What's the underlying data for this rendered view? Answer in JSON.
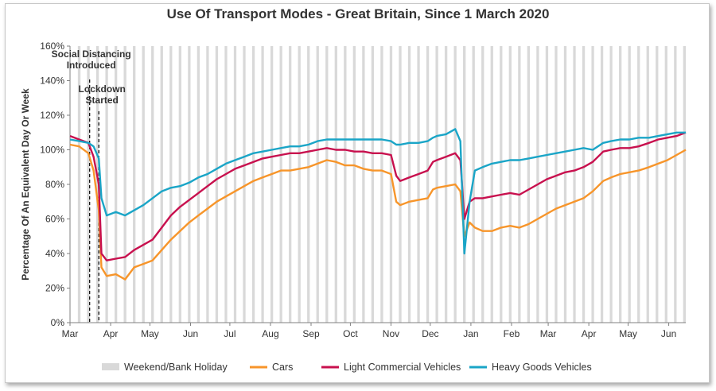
{
  "chart_data": {
    "type": "line",
    "title": "Use Of Transport Modes - Great Britain, Since 1 March 2020",
    "ylabel": "Percentage Of An Equivalent Day Or Week",
    "xlabel": "",
    "ylim": [
      0,
      160
    ],
    "y_ticks": [
      "0%",
      "20%",
      "40%",
      "60%",
      "80%",
      "100%",
      "120%",
      "140%",
      "160%"
    ],
    "x_tick_labels": [
      "Mar",
      "Apr",
      "May",
      "Jun",
      "Jul",
      "Aug",
      "Sep",
      "Oct",
      "Nov",
      "Dec",
      "Jan",
      "Feb",
      "Mar",
      "Apr",
      "May",
      "Jun"
    ],
    "x_start": "2020-03-01",
    "x_end": "2021-06-14",
    "grid": false,
    "legend_position": "bottom",
    "legend": {
      "shading": "Weekend/Bank Holiday",
      "shading_color": "#d9d9d9"
    },
    "annotations": [
      {
        "label_lines": [
          "Social Distancing",
          "Introduced"
        ],
        "date": "2020-03-16"
      },
      {
        "label_lines": [
          "Lockdown",
          "Started"
        ],
        "date": "2020-03-23"
      }
    ],
    "series": [
      {
        "name": "Cars",
        "color": "#f7952a",
        "points": [
          [
            "2020-03-01",
            103
          ],
          [
            "2020-03-08",
            102
          ],
          [
            "2020-03-15",
            98
          ],
          [
            "2020-03-19",
            88
          ],
          [
            "2020-03-23",
            65
          ],
          [
            "2020-03-25",
            32
          ],
          [
            "2020-03-29",
            27
          ],
          [
            "2020-04-05",
            28
          ],
          [
            "2020-04-12",
            25
          ],
          [
            "2020-04-19",
            32
          ],
          [
            "2020-04-26",
            34
          ],
          [
            "2020-05-03",
            36
          ],
          [
            "2020-05-10",
            42
          ],
          [
            "2020-05-17",
            48
          ],
          [
            "2020-05-24",
            53
          ],
          [
            "2020-05-31",
            58
          ],
          [
            "2020-06-07",
            62
          ],
          [
            "2020-06-14",
            66
          ],
          [
            "2020-06-21",
            70
          ],
          [
            "2020-06-28",
            73
          ],
          [
            "2020-07-05",
            76
          ],
          [
            "2020-07-12",
            79
          ],
          [
            "2020-07-19",
            82
          ],
          [
            "2020-07-26",
            84
          ],
          [
            "2020-08-02",
            86
          ],
          [
            "2020-08-09",
            88
          ],
          [
            "2020-08-16",
            88
          ],
          [
            "2020-08-23",
            89
          ],
          [
            "2020-08-30",
            90
          ],
          [
            "2020-09-06",
            92
          ],
          [
            "2020-09-13",
            94
          ],
          [
            "2020-09-20",
            93
          ],
          [
            "2020-09-27",
            91
          ],
          [
            "2020-10-04",
            91
          ],
          [
            "2020-10-11",
            89
          ],
          [
            "2020-10-18",
            88
          ],
          [
            "2020-10-25",
            88
          ],
          [
            "2020-11-01",
            86
          ],
          [
            "2020-11-05",
            70
          ],
          [
            "2020-11-08",
            68
          ],
          [
            "2020-11-15",
            70
          ],
          [
            "2020-11-22",
            71
          ],
          [
            "2020-11-29",
            72
          ],
          [
            "2020-12-03",
            77
          ],
          [
            "2020-12-06",
            78
          ],
          [
            "2020-12-13",
            79
          ],
          [
            "2020-12-20",
            80
          ],
          [
            "2020-12-24",
            76
          ],
          [
            "2020-12-27",
            50
          ],
          [
            "2020-12-31",
            58
          ],
          [
            "2021-01-04",
            55
          ],
          [
            "2021-01-10",
            53
          ],
          [
            "2021-01-17",
            53
          ],
          [
            "2021-01-24",
            55
          ],
          [
            "2021-01-31",
            56
          ],
          [
            "2021-02-07",
            55
          ],
          [
            "2021-02-14",
            57
          ],
          [
            "2021-02-21",
            60
          ],
          [
            "2021-02-28",
            63
          ],
          [
            "2021-03-07",
            66
          ],
          [
            "2021-03-14",
            68
          ],
          [
            "2021-03-21",
            70
          ],
          [
            "2021-03-28",
            72
          ],
          [
            "2021-04-04",
            76
          ],
          [
            "2021-04-12",
            82
          ],
          [
            "2021-04-18",
            84
          ],
          [
            "2021-04-25",
            86
          ],
          [
            "2021-05-02",
            87
          ],
          [
            "2021-05-09",
            88
          ],
          [
            "2021-05-17",
            90
          ],
          [
            "2021-05-24",
            92
          ],
          [
            "2021-05-31",
            94
          ],
          [
            "2021-06-07",
            97
          ],
          [
            "2021-06-14",
            100
          ]
        ]
      },
      {
        "name": "Light Commercial Vehicles",
        "color": "#c8104e",
        "points": [
          [
            "2020-03-01",
            108
          ],
          [
            "2020-03-08",
            106
          ],
          [
            "2020-03-15",
            104
          ],
          [
            "2020-03-19",
            96
          ],
          [
            "2020-03-23",
            80
          ],
          [
            "2020-03-25",
            40
          ],
          [
            "2020-03-29",
            36
          ],
          [
            "2020-04-05",
            37
          ],
          [
            "2020-04-12",
            38
          ],
          [
            "2020-04-19",
            42
          ],
          [
            "2020-04-26",
            45
          ],
          [
            "2020-05-03",
            48
          ],
          [
            "2020-05-10",
            55
          ],
          [
            "2020-05-17",
            62
          ],
          [
            "2020-05-24",
            67
          ],
          [
            "2020-05-31",
            71
          ],
          [
            "2020-06-07",
            75
          ],
          [
            "2020-06-14",
            79
          ],
          [
            "2020-06-21",
            83
          ],
          [
            "2020-06-28",
            86
          ],
          [
            "2020-07-05",
            89
          ],
          [
            "2020-07-12",
            91
          ],
          [
            "2020-07-19",
            93
          ],
          [
            "2020-07-26",
            95
          ],
          [
            "2020-08-02",
            96
          ],
          [
            "2020-08-09",
            97
          ],
          [
            "2020-08-16",
            98
          ],
          [
            "2020-08-23",
            98
          ],
          [
            "2020-08-30",
            99
          ],
          [
            "2020-09-06",
            100
          ],
          [
            "2020-09-13",
            101
          ],
          [
            "2020-09-20",
            100
          ],
          [
            "2020-09-27",
            100
          ],
          [
            "2020-10-04",
            99
          ],
          [
            "2020-10-11",
            99
          ],
          [
            "2020-10-18",
            98
          ],
          [
            "2020-10-25",
            98
          ],
          [
            "2020-11-01",
            97
          ],
          [
            "2020-11-05",
            85
          ],
          [
            "2020-11-08",
            82
          ],
          [
            "2020-11-15",
            84
          ],
          [
            "2020-11-22",
            86
          ],
          [
            "2020-11-29",
            88
          ],
          [
            "2020-12-03",
            93
          ],
          [
            "2020-12-06",
            94
          ],
          [
            "2020-12-13",
            96
          ],
          [
            "2020-12-20",
            98
          ],
          [
            "2020-12-24",
            94
          ],
          [
            "2020-12-27",
            60
          ],
          [
            "2020-12-31",
            70
          ],
          [
            "2021-01-04",
            72
          ],
          [
            "2021-01-10",
            72
          ],
          [
            "2021-01-17",
            73
          ],
          [
            "2021-01-24",
            74
          ],
          [
            "2021-01-31",
            75
          ],
          [
            "2021-02-07",
            74
          ],
          [
            "2021-02-14",
            77
          ],
          [
            "2021-02-21",
            80
          ],
          [
            "2021-02-28",
            83
          ],
          [
            "2021-03-07",
            85
          ],
          [
            "2021-03-14",
            87
          ],
          [
            "2021-03-21",
            88
          ],
          [
            "2021-03-28",
            90
          ],
          [
            "2021-04-04",
            93
          ],
          [
            "2021-04-12",
            99
          ],
          [
            "2021-04-18",
            100
          ],
          [
            "2021-04-25",
            101
          ],
          [
            "2021-05-02",
            101
          ],
          [
            "2021-05-09",
            102
          ],
          [
            "2021-05-17",
            104
          ],
          [
            "2021-05-24",
            106
          ],
          [
            "2021-05-31",
            107
          ],
          [
            "2021-06-07",
            108
          ],
          [
            "2021-06-14",
            110
          ]
        ]
      },
      {
        "name": "Heavy Goods Vehicles",
        "color": "#1aa5c7",
        "points": [
          [
            "2020-03-01",
            106
          ],
          [
            "2020-03-08",
            105
          ],
          [
            "2020-03-15",
            104
          ],
          [
            "2020-03-19",
            102
          ],
          [
            "2020-03-23",
            95
          ],
          [
            "2020-03-25",
            72
          ],
          [
            "2020-03-29",
            62
          ],
          [
            "2020-04-05",
            64
          ],
          [
            "2020-04-12",
            62
          ],
          [
            "2020-04-19",
            65
          ],
          [
            "2020-04-26",
            68
          ],
          [
            "2020-05-03",
            72
          ],
          [
            "2020-05-10",
            76
          ],
          [
            "2020-05-17",
            78
          ],
          [
            "2020-05-24",
            79
          ],
          [
            "2020-05-31",
            81
          ],
          [
            "2020-06-07",
            84
          ],
          [
            "2020-06-14",
            86
          ],
          [
            "2020-06-21",
            89
          ],
          [
            "2020-06-28",
            92
          ],
          [
            "2020-07-05",
            94
          ],
          [
            "2020-07-12",
            96
          ],
          [
            "2020-07-19",
            98
          ],
          [
            "2020-07-26",
            99
          ],
          [
            "2020-08-02",
            100
          ],
          [
            "2020-08-09",
            101
          ],
          [
            "2020-08-16",
            102
          ],
          [
            "2020-08-23",
            102
          ],
          [
            "2020-08-30",
            103
          ],
          [
            "2020-09-06",
            105
          ],
          [
            "2020-09-13",
            106
          ],
          [
            "2020-09-20",
            106
          ],
          [
            "2020-09-27",
            106
          ],
          [
            "2020-10-04",
            106
          ],
          [
            "2020-10-11",
            106
          ],
          [
            "2020-10-18",
            106
          ],
          [
            "2020-10-25",
            106
          ],
          [
            "2020-11-01",
            105
          ],
          [
            "2020-11-05",
            103
          ],
          [
            "2020-11-08",
            103
          ],
          [
            "2020-11-15",
            104
          ],
          [
            "2020-11-22",
            104
          ],
          [
            "2020-11-29",
            105
          ],
          [
            "2020-12-03",
            107
          ],
          [
            "2020-12-06",
            108
          ],
          [
            "2020-12-13",
            109
          ],
          [
            "2020-12-20",
            112
          ],
          [
            "2020-12-24",
            105
          ],
          [
            "2020-12-27",
            40
          ],
          [
            "2020-12-31",
            70
          ],
          [
            "2021-01-04",
            88
          ],
          [
            "2021-01-10",
            90
          ],
          [
            "2021-01-17",
            92
          ],
          [
            "2021-01-24",
            93
          ],
          [
            "2021-01-31",
            94
          ],
          [
            "2021-02-07",
            94
          ],
          [
            "2021-02-14",
            95
          ],
          [
            "2021-02-21",
            96
          ],
          [
            "2021-02-28",
            97
          ],
          [
            "2021-03-07",
            98
          ],
          [
            "2021-03-14",
            99
          ],
          [
            "2021-03-21",
            100
          ],
          [
            "2021-03-28",
            101
          ],
          [
            "2021-04-04",
            100
          ],
          [
            "2021-04-12",
            104
          ],
          [
            "2021-04-18",
            105
          ],
          [
            "2021-04-25",
            106
          ],
          [
            "2021-05-02",
            106
          ],
          [
            "2021-05-09",
            107
          ],
          [
            "2021-05-17",
            107
          ],
          [
            "2021-05-24",
            108
          ],
          [
            "2021-05-31",
            109
          ],
          [
            "2021-06-07",
            110
          ],
          [
            "2021-06-14",
            110
          ]
        ]
      }
    ]
  }
}
